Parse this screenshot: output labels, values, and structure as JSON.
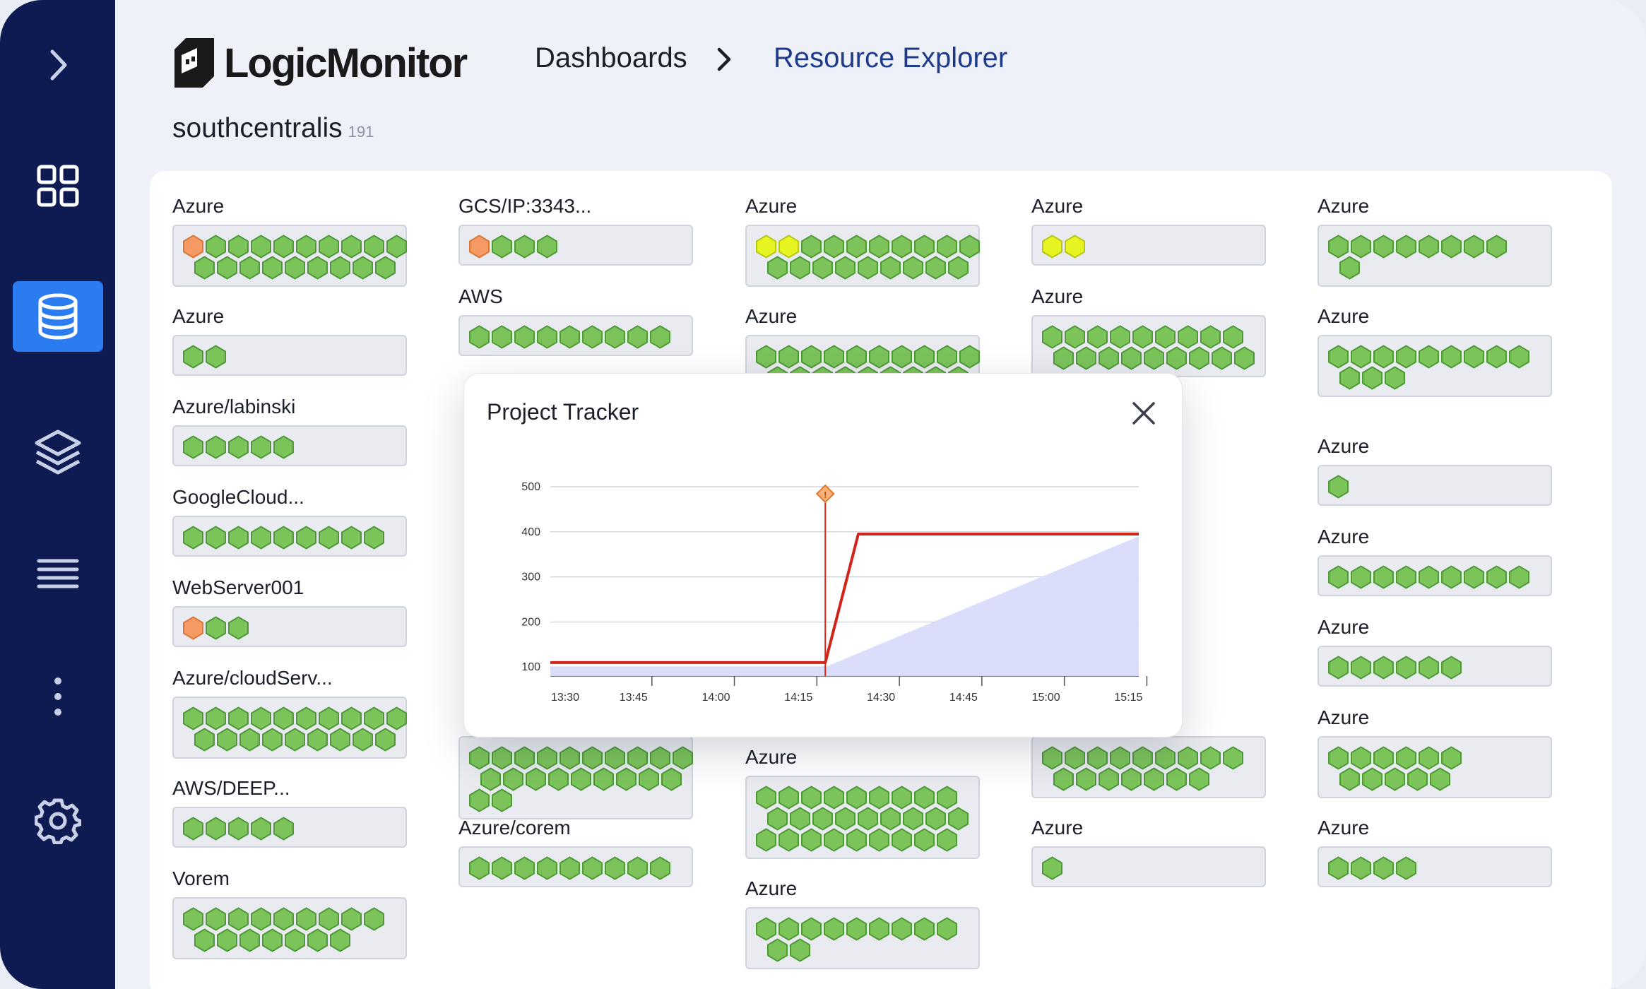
{
  "app": {
    "logo_text": "LogicMonitor"
  },
  "breadcrumb": {
    "first": "Dashboards",
    "current": "Resource Explorer"
  },
  "page": {
    "title": "southcentralis",
    "count": "191"
  },
  "colors": {
    "green": "#7cc35a",
    "green_border": "#4e9a38",
    "orange": "#f59a62",
    "yellow": "#e6f521",
    "sidebar": "#0d1b52",
    "active": "#2b7cf0",
    "line": "#d1241b",
    "area": "#d8dcfb"
  },
  "sidebar": {
    "icons": [
      "chevron-right-icon",
      "dashboard-grid-icon",
      "database-icon",
      "layers-icon",
      "list-icon",
      "more-vertical-icon",
      "gear-icon"
    ]
  },
  "groups": [
    {
      "label": "Azure",
      "rows": [
        [
          "o",
          "g",
          "g",
          "g",
          "g",
          "g",
          "g",
          "g",
          "g",
          "g"
        ],
        [
          "g",
          "g",
          "g",
          "g",
          "g",
          "g",
          "g",
          "g",
          "g"
        ]
      ]
    },
    {
      "label": "Azure",
      "rows": [
        [
          "g",
          "g"
        ]
      ]
    },
    {
      "label": "Azure/labinski",
      "rows": [
        [
          "g",
          "g",
          "g",
          "g",
          "g"
        ]
      ]
    },
    {
      "label": "GoogleCloud...",
      "rows": [
        [
          "g",
          "g",
          "g",
          "g",
          "g",
          "g",
          "g",
          "g",
          "g"
        ]
      ]
    },
    {
      "label": "WebServer001",
      "rows": [
        [
          "o",
          "g",
          "g"
        ]
      ]
    },
    {
      "label": "Azure/cloudServ...",
      "rows": [
        [
          "g",
          "g",
          "g",
          "g",
          "g",
          "g",
          "g",
          "g",
          "g",
          "g"
        ],
        [
          "g",
          "g",
          "g",
          "g",
          "g",
          "g",
          "g",
          "g",
          "g"
        ]
      ]
    },
    {
      "label": "AWS/DEEP...",
      "rows": [
        [
          "g",
          "g",
          "g",
          "g",
          "g"
        ]
      ]
    },
    {
      "label": "Vorem",
      "rows": [
        [
          "g",
          "g",
          "g",
          "g",
          "g",
          "g",
          "g",
          "g",
          "g"
        ],
        [
          "g",
          "g",
          "g",
          "g",
          "g",
          "g",
          "g"
        ]
      ]
    },
    {
      "label": "GCS/IP:3343...",
      "rows": [
        [
          "o",
          "g",
          "g",
          "g"
        ]
      ]
    },
    {
      "label": "AWS",
      "rows": [
        [
          "g",
          "g",
          "g",
          "g",
          "g",
          "g",
          "g",
          "g",
          "g"
        ]
      ]
    },
    {
      "label": "",
      "rows": [
        [
          "g",
          "g",
          "g",
          "g",
          "g",
          "g",
          "g",
          "g",
          "g",
          "g"
        ],
        [
          "g",
          "g",
          "g",
          "g",
          "g",
          "g",
          "g",
          "g",
          "g"
        ],
        [
          "g",
          "g"
        ]
      ]
    },
    {
      "label": "Azure/corem",
      "rows": [
        [
          "g",
          "g",
          "g",
          "g",
          "g",
          "g",
          "g",
          "g",
          "g"
        ]
      ]
    },
    {
      "label": "Azure",
      "rows": [
        [
          "y",
          "y",
          "g",
          "g",
          "g",
          "g",
          "g",
          "g",
          "g",
          "g"
        ],
        [
          "g",
          "g",
          "g",
          "g",
          "g",
          "g",
          "g",
          "g",
          "g"
        ]
      ]
    },
    {
      "label": "Azure",
      "rows": [
        [
          "g",
          "g",
          "g",
          "g",
          "g",
          "g",
          "g",
          "g",
          "g",
          "g"
        ],
        [
          "g",
          "g",
          "g",
          "g",
          "g",
          "g",
          "g",
          "g",
          "g"
        ]
      ]
    },
    {
      "label": "Azure",
      "rows": [
        [
          "g",
          "g",
          "g",
          "g",
          "g",
          "g",
          "g",
          "g",
          "g"
        ],
        [
          "g",
          "g",
          "g",
          "g",
          "g",
          "g",
          "g",
          "g",
          "g"
        ],
        [
          "g",
          "g",
          "g",
          "g",
          "g",
          "g",
          "g",
          "g",
          "g"
        ]
      ]
    },
    {
      "label": "Azure",
      "rows": [
        [
          "g",
          "g",
          "g",
          "g",
          "g",
          "g",
          "g",
          "g",
          "g"
        ],
        [
          "g",
          "g"
        ]
      ]
    },
    {
      "label": "Azure",
      "rows": [
        [
          "y",
          "y"
        ]
      ]
    },
    {
      "label": "Azure",
      "rows": [
        [
          "g",
          "g",
          "g",
          "g",
          "g",
          "g",
          "g",
          "g",
          "g"
        ],
        [
          "g",
          "g",
          "g",
          "g",
          "g",
          "g",
          "g",
          "g",
          "g"
        ]
      ]
    },
    {
      "label": "",
      "rows": [
        [
          "g",
          "g",
          "g",
          "g",
          "g",
          "g",
          "g",
          "g",
          "g"
        ],
        [
          "g",
          "g",
          "g",
          "g",
          "g",
          "g",
          "g"
        ]
      ]
    },
    {
      "label": "Azure",
      "rows": [
        [
          "g"
        ]
      ]
    },
    {
      "label": "Azure",
      "rows": [
        [
          "g",
          "g",
          "g",
          "g",
          "g",
          "g",
          "g",
          "g"
        ],
        [
          "g"
        ]
      ]
    },
    {
      "label": "Azure",
      "rows": [
        [
          "g",
          "g",
          "g",
          "g",
          "g",
          "g",
          "g",
          "g",
          "g"
        ],
        [
          "g",
          "g",
          "g"
        ]
      ]
    },
    {
      "label": "Azure",
      "rows": [
        [
          "g"
        ]
      ]
    },
    {
      "label": "Azure",
      "rows": [
        [
          "g",
          "g",
          "g",
          "g",
          "g",
          "g",
          "g",
          "g",
          "g"
        ]
      ]
    },
    {
      "label": "Azure",
      "rows": [
        [
          "g",
          "g",
          "g",
          "g",
          "g",
          "g"
        ]
      ]
    },
    {
      "label": "Azure",
      "rows": [
        [
          "g",
          "g",
          "g",
          "g",
          "g",
          "g"
        ],
        [
          "g",
          "g",
          "g",
          "g",
          "g"
        ]
      ]
    },
    {
      "label": "Azure",
      "rows": [
        [
          "g",
          "g",
          "g",
          "g"
        ]
      ]
    }
  ],
  "modal": {
    "title": "Project Tracker",
    "close_icon": "close-icon"
  },
  "chart_data": {
    "type": "line",
    "title": "",
    "x_ticks": [
      "13:30",
      "13:45",
      "14:00",
      "14:15",
      "14:30",
      "14:45",
      "15:00",
      "15:15"
    ],
    "y_ticks": [
      100,
      200,
      300,
      400,
      500
    ],
    "ylim": [
      80,
      500
    ],
    "xlim": [
      "13:30",
      "15:17"
    ],
    "grid": true,
    "series": [
      {
        "type": "line",
        "color": "#d1241b",
        "points": [
          [
            "13:30",
            110
          ],
          [
            "14:20",
            110
          ],
          [
            "14:26",
            395
          ],
          [
            "15:17",
            395
          ]
        ]
      },
      {
        "type": "area",
        "color": "#d8dcfb",
        "points": [
          [
            "13:30",
            100
          ],
          [
            "14:20",
            100
          ],
          [
            "15:17",
            390
          ]
        ]
      }
    ],
    "marker": {
      "x": "14:20",
      "icon": "alert-diamond-icon",
      "label": "!"
    }
  }
}
